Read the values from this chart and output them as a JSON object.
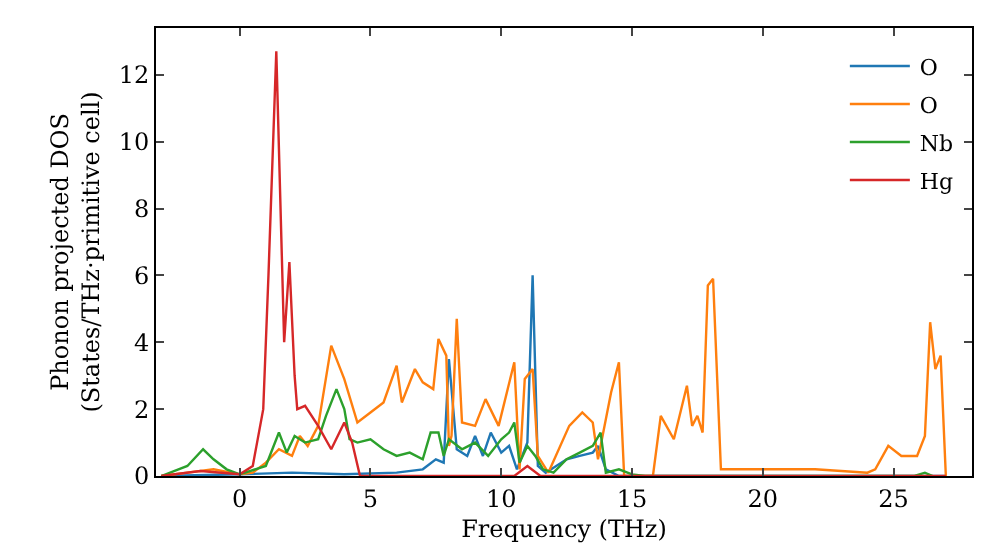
{
  "chart_data": {
    "type": "line",
    "xlabel": "Frequency (THz)",
    "ylabel": "Phonon projected DOS\n(States/THz·primitive cell)",
    "xlim": [
      -3.2,
      28
    ],
    "ylim": [
      0,
      13.4
    ],
    "xticks": [
      0,
      5,
      10,
      15,
      20,
      25
    ],
    "yticks": [
      0,
      2,
      4,
      6,
      8,
      10,
      12
    ],
    "legend": "top right",
    "marker": "none",
    "line_style": "solid",
    "series": [
      {
        "name": "O",
        "color": "#1f77b4",
        "x": [
          -3,
          0,
          2,
          4,
          6,
          7,
          7.5,
          7.8,
          8.0,
          8.3,
          8.7,
          9,
          9.3,
          9.6,
          10,
          10.3,
          10.6,
          11,
          11.2,
          11.4,
          11.7,
          12.5,
          13,
          13.5,
          13.7,
          14,
          14.5,
          27
        ],
        "values": [
          0,
          0.05,
          0.1,
          0.05,
          0.1,
          0.2,
          0.5,
          0.4,
          3.5,
          0.8,
          0.6,
          1.2,
          0.6,
          1.3,
          0.7,
          0.9,
          0.2,
          1.0,
          6.0,
          0.3,
          0.1,
          0.5,
          0.6,
          0.7,
          0.9,
          0.2,
          0,
          0
        ]
      },
      {
        "name": "O",
        "color": "#ff7f0e",
        "x": [
          -3,
          -2,
          -1,
          0,
          0.5,
          1,
          1.5,
          2,
          2.3,
          2.6,
          3,
          3.5,
          4,
          4.5,
          5,
          5.5,
          6,
          6.2,
          6.7,
          7,
          7.4,
          7.6,
          7.9,
          8.0,
          8.1,
          8.3,
          8.5,
          9,
          9.4,
          9.9,
          10.5,
          10.7,
          10.9,
          11.2,
          11.4,
          11.8,
          12.6,
          13.1,
          13.5,
          13.7,
          14.2,
          14.5,
          14.7,
          15.8,
          16.1,
          16.6,
          17.1,
          17.3,
          17.5,
          17.7,
          17.9,
          18.1,
          18.4,
          22,
          24,
          24.3,
          24.8,
          25.3,
          25.9,
          26.2,
          26.4,
          26.6,
          26.8,
          27
        ],
        "values": [
          0,
          0.1,
          0.2,
          0.05,
          0.1,
          0.4,
          0.8,
          0.6,
          1.2,
          0.9,
          1.5,
          3.9,
          2.9,
          1.6,
          1.9,
          2.2,
          3.3,
          2.2,
          3.2,
          2.8,
          2.6,
          4.1,
          3.6,
          0.9,
          1.2,
          4.7,
          1.6,
          1.5,
          2.3,
          1.5,
          3.4,
          0.2,
          2.9,
          3.2,
          0.6,
          0.1,
          1.5,
          1.9,
          1.6,
          0.5,
          2.5,
          3.4,
          0,
          0,
          1.8,
          1.1,
          2.7,
          1.5,
          1.8,
          1.3,
          5.7,
          5.9,
          0.2,
          0.2,
          0.1,
          0.2,
          0.9,
          0.6,
          0.6,
          1.2,
          4.6,
          3.2,
          3.6,
          0
        ]
      },
      {
        "name": "Nb",
        "color": "#2ca02c",
        "x": [
          -3,
          -2,
          -1.4,
          -1,
          -0.5,
          0,
          1,
          1.5,
          1.8,
          2.1,
          2.5,
          3,
          3.3,
          3.7,
          4,
          4.2,
          4.5,
          5,
          5.5,
          6,
          6.5,
          7,
          7.3,
          7.6,
          7.8,
          8,
          8.5,
          9,
          9.5,
          10,
          10.3,
          10.5,
          10.7,
          11,
          11.3,
          11.6,
          12,
          12.5,
          13,
          13.5,
          13.8,
          14,
          14.5,
          15,
          15.5,
          25.8,
          26.2,
          26.5
        ],
        "values": [
          0,
          0.3,
          0.8,
          0.5,
          0.2,
          0.05,
          0.3,
          1.3,
          0.7,
          1.2,
          1.0,
          1.1,
          1.8,
          2.6,
          2.0,
          1.1,
          1.0,
          1.1,
          0.8,
          0.6,
          0.7,
          0.5,
          1.3,
          1.3,
          0.6,
          1.1,
          0.8,
          1.0,
          0.6,
          1.1,
          1.3,
          1.6,
          0.4,
          0.9,
          0.6,
          0.2,
          0.1,
          0.5,
          0.7,
          0.9,
          1.3,
          0.1,
          0.2,
          0.05,
          0,
          0,
          0.1,
          0
        ]
      },
      {
        "name": "Hg",
        "color": "#d62728",
        "x": [
          -3,
          -1.5,
          0,
          0.5,
          0.9,
          1.1,
          1.4,
          1.7,
          1.9,
          2.1,
          2.2,
          2.5,
          3,
          3.5,
          4,
          4.3,
          4.6,
          10.5,
          11,
          11.5,
          27
        ],
        "values": [
          0,
          0.15,
          0.05,
          0.3,
          2.0,
          6.0,
          12.7,
          4.0,
          6.4,
          3.0,
          2.0,
          2.1,
          1.5,
          0.8,
          1.6,
          1.0,
          0,
          0,
          0.3,
          0,
          0
        ]
      }
    ]
  }
}
